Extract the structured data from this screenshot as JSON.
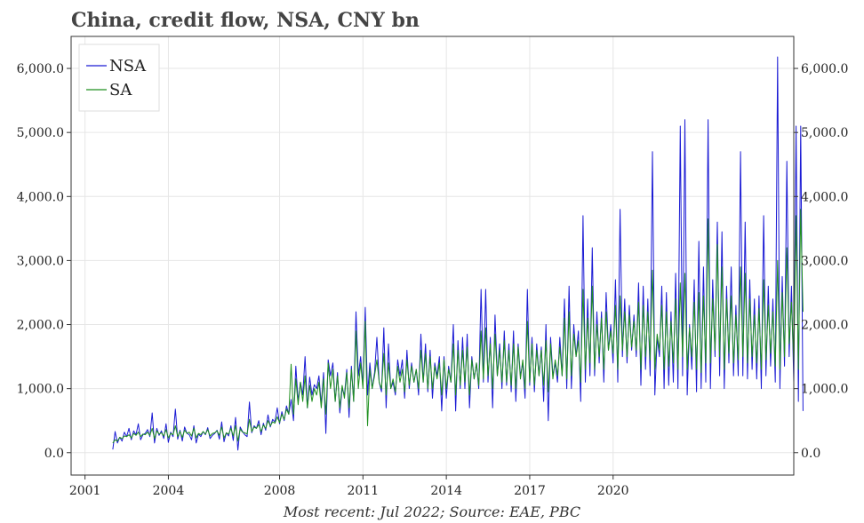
{
  "chart_data": {
    "type": "line",
    "title": "China, credit flow, NSA, CNY bn",
    "footer": "Most recent: Jul 2022; Source: EAE, PBC",
    "xlabel": "",
    "ylabel": "",
    "xlim": [
      2000.5,
      2026.5
    ],
    "ylim": [
      -350,
      6500
    ],
    "x_ticks": [
      2001,
      2004,
      2008,
      2011,
      2014,
      2017,
      2020
    ],
    "y_ticks": [
      0,
      1000,
      2000,
      3000,
      4000,
      5000,
      6000
    ],
    "y_tick_labels": [
      "0.0",
      "1,000.0",
      "2,000.0",
      "3,000.0",
      "4,000.0",
      "5,000.0",
      "6,000.0"
    ],
    "grid": true,
    "legend_position": "top-left",
    "series": [
      {
        "name": "NSA",
        "color": "#1a1ad4",
        "start": 2002,
        "step": 0.0833333,
        "values": [
          50,
          330,
          150,
          240,
          180,
          320,
          250,
          380,
          200,
          340,
          280,
          450,
          200,
          280,
          300,
          360,
          250,
          620,
          150,
          380,
          270,
          340,
          220,
          450,
          160,
          320,
          250,
          680,
          210,
          350,
          180,
          400,
          300,
          280,
          200,
          420,
          150,
          290,
          250,
          330,
          280,
          390,
          220,
          270,
          300,
          350,
          210,
          480,
          170,
          310,
          260,
          420,
          190,
          550,
          40,
          400,
          330,
          280,
          250,
          790,
          310,
          420,
          380,
          500,
          280,
          460,
          350,
          590,
          400,
          520,
          480,
          700,
          450,
          640,
          500,
          730,
          600,
          830,
          500,
          1350,
          800,
          1100,
          900,
          1500,
          700,
          1180,
          900,
          1060,
          1000,
          1200,
          750,
          1250,
          300,
          1450,
          1200,
          1400,
          800,
          1250,
          620,
          1000,
          900,
          1300,
          550,
          1350,
          800,
          2200,
          1200,
          1500,
          1050,
          2270,
          900,
          1400,
          1000,
          1250,
          1800,
          1100,
          950,
          1950,
          700,
          1700,
          1000,
          1100,
          900,
          1450,
          1200,
          1450,
          850,
          1600,
          1000,
          1400,
          1100,
          1300,
          900,
          1850,
          1100,
          1700,
          950,
          1600,
          850,
          1400,
          1200,
          1500,
          650,
          1500,
          850,
          1350,
          1100,
          2000,
          650,
          1750,
          1000,
          1800,
          1000,
          1850,
          700,
          1500,
          1150,
          1400,
          1000,
          2550,
          1100,
          2550,
          1100,
          1800,
          700,
          2150,
          1200,
          1700,
          1000,
          1900,
          1050,
          1700,
          950,
          1900,
          800,
          1700,
          1200,
          1400,
          850,
          2550,
          1050,
          1800,
          950,
          1700,
          1200,
          1650,
          800,
          2000,
          500,
          1800,
          1200,
          1400,
          1100,
          1800,
          1200,
          2400,
          1000,
          2600,
          1000,
          2000,
          1500,
          1900,
          800,
          3700,
          1100,
          2400,
          1200,
          3200,
          1200,
          2200,
          1400,
          2200,
          1100,
          2500,
          1600,
          2000,
          1400,
          2700,
          1100,
          3800,
          1500,
          2400,
          1400,
          2300,
          1600,
          2150,
          1500,
          2650,
          1050,
          2600,
          1300,
          2400,
          1200,
          4700,
          900,
          1800,
          1500,
          2600,
          1000,
          2500,
          1050,
          2200,
          1100,
          2800,
          1000,
          5100,
          1200,
          5200,
          900,
          2000,
          1300,
          2700,
          950,
          3300,
          1000,
          2900,
          1100,
          5200,
          1000,
          2700,
          1500,
          3600,
          1200,
          3450,
          1000,
          2600,
          1400,
          2900,
          1200,
          2300,
          1200,
          4700,
          1200,
          3600,
          1150,
          2700,
          1300,
          2400,
          1150,
          2450,
          1000,
          3700,
          1200,
          2600,
          1350,
          2400,
          1100,
          6180,
          1000,
          2750,
          1350,
          4550,
          1500,
          2600,
          1100,
          5100,
          800,
          5100,
          650
        ]
      },
      {
        "name": "SA",
        "color": "#1f8f1f",
        "start": 2002,
        "step": 0.0833333,
        "values": [
          150,
          200,
          180,
          240,
          220,
          260,
          250,
          280,
          230,
          300,
          270,
          320,
          250,
          290,
          280,
          320,
          270,
          380,
          220,
          340,
          290,
          310,
          260,
          360,
          230,
          300,
          280,
          420,
          250,
          330,
          240,
          350,
          300,
          320,
          260,
          380,
          230,
          300,
          280,
          330,
          290,
          360,
          260,
          300,
          310,
          340,
          270,
          400,
          230,
          310,
          290,
          380,
          260,
          420,
          180,
          370,
          320,
          310,
          290,
          520,
          330,
          400,
          380,
          440,
          330,
          430,
          380,
          500,
          420,
          480,
          460,
          560,
          470,
          600,
          520,
          680,
          600,
          1380,
          600,
          1150,
          750,
          1100,
          800,
          1200,
          700,
          1050,
          800,
          1000,
          900,
          1100,
          700,
          1150,
          600,
          1400,
          1000,
          1300,
          800,
          1200,
          700,
          1050,
          850,
          1250,
          700,
          1300,
          800,
          1900,
          1000,
          1400,
          1000,
          2050,
          420,
          1300,
          1000,
          1200,
          1450,
          1100,
          1000,
          1550,
          900,
          1400,
          1000,
          1150,
          950,
          1350,
          1100,
          1300,
          950,
          1450,
          1050,
          1350,
          1100,
          1300,
          1000,
          1600,
          1100,
          1550,
          1000,
          1500,
          1000,
          1350,
          1150,
          1400,
          900,
          1450,
          1000,
          1300,
          1100,
          1700,
          900,
          1600,
          1050,
          1600,
          1100,
          1650,
          900,
          1450,
          1150,
          1400,
          1050,
          1900,
          1150,
          1950,
          1200,
          1700,
          1000,
          1850,
          1200,
          1600,
          1100,
          1750,
          1100,
          1600,
          1050,
          1700,
          1000,
          1650,
          1150,
          1450,
          1000,
          2050,
          1100,
          1700,
          1050,
          1600,
          1200,
          1600,
          1050,
          1750,
          950,
          1700,
          1150,
          1450,
          1200,
          1650,
          1200,
          2100,
          1150,
          2200,
          1200,
          1850,
          1500,
          1750,
          1100,
          2550,
          1300,
          2100,
          1400,
          2600,
          1300,
          2000,
          1500,
          2100,
          1300,
          2200,
          1600,
          1900,
          1550,
          2300,
          1300,
          2450,
          1600,
          2200,
          1500,
          2150,
          1650,
          2050,
          1600,
          2350,
          1300,
          2300,
          1500,
          2200,
          1450,
          2850,
          1300,
          1850,
          1600,
          2300,
          1300,
          2200,
          1350,
          2050,
          1400,
          2400,
          1300,
          2650,
          1500,
          2800,
          1300,
          1950,
          1500,
          2350,
          1300,
          2500,
          1250,
          2450,
          1400,
          3650,
          1400,
          2400,
          1600,
          3250,
          1500,
          2900,
          1300,
          2400,
          1550,
          2450,
          1400,
          2150,
          1450,
          2900,
          1500,
          2800,
          1400,
          2400,
          1500,
          2150,
          1400,
          2250,
          1300,
          2700,
          1450,
          2300,
          1550,
          2200,
          1350,
          3000,
          1300,
          2500,
          1500,
          3200,
          1700,
          2350,
          1400,
          3700,
          1300,
          3800,
          2200
        ]
      }
    ]
  }
}
